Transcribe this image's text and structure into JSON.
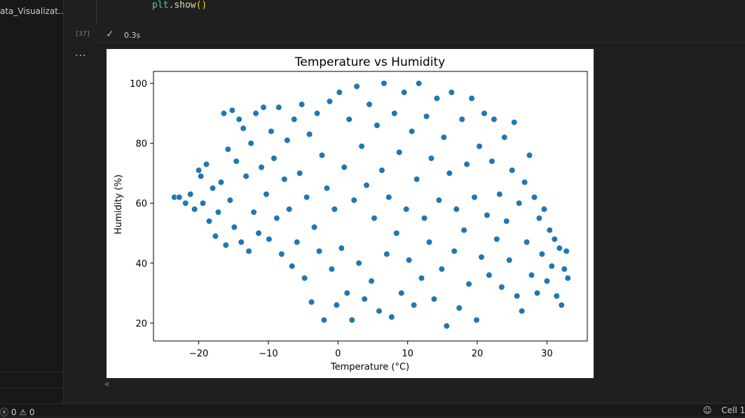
{
  "sidebar": {
    "file_name": "ata_Visualizat..."
  },
  "code_cell": {
    "code": {
      "object": "plt",
      "dot": ".",
      "method": "show",
      "parens": "()"
    },
    "execution_count": "[37]",
    "status_icon": "check-icon",
    "duration": "0.3s"
  },
  "output": {
    "menu_label": "..."
  },
  "statusbar": {
    "errors": "0",
    "warnings": "0",
    "cell_label": "Cell 1",
    "error_icon": "error-circle-icon",
    "warning_icon": "warning-triangle-icon",
    "copilot_icon": "copilot-icon"
  },
  "chart_data": {
    "type": "scatter",
    "title": "Temperature vs Humidity",
    "xlabel": "Temperature (°C)",
    "ylabel": "Humidity (%)",
    "xlim": [
      -26.5,
      35.8
    ],
    "ylim": [
      14,
      104
    ],
    "xticks": [
      -20,
      -10,
      0,
      10,
      20,
      30
    ],
    "yticks": [
      20,
      40,
      60,
      80,
      100
    ],
    "xtick_labels": [
      "−20",
      "−10",
      "0",
      "10",
      "20",
      "30"
    ],
    "ytick_labels": [
      "20",
      "40",
      "60",
      "80",
      "100"
    ],
    "grid": false,
    "marker_color": "#1f77b4",
    "marker_edge_color": "#ffffff",
    "series": [
      {
        "points": [
          [
            -23.5,
            62
          ],
          [
            -22.8,
            62
          ],
          [
            -21.9,
            60
          ],
          [
            -21.2,
            63
          ],
          [
            -20.6,
            58
          ],
          [
            -20.0,
            71
          ],
          [
            -19.7,
            69
          ],
          [
            -19.4,
            60
          ],
          [
            -18.9,
            73
          ],
          [
            -18.5,
            54
          ],
          [
            -18.0,
            65
          ],
          [
            -17.6,
            49
          ],
          [
            -17.2,
            57
          ],
          [
            -16.8,
            67
          ],
          [
            -16.4,
            90
          ],
          [
            -16.1,
            46
          ],
          [
            -15.8,
            78
          ],
          [
            -15.5,
            61
          ],
          [
            -15.2,
            91
          ],
          [
            -14.9,
            52
          ],
          [
            -14.6,
            74
          ],
          [
            -14.2,
            88
          ],
          [
            -13.9,
            47
          ],
          [
            -13.6,
            85
          ],
          [
            -13.2,
            69
          ],
          [
            -12.8,
            44
          ],
          [
            -12.5,
            80
          ],
          [
            -12.1,
            57
          ],
          [
            -11.8,
            90
          ],
          [
            -11.4,
            50
          ],
          [
            -11.0,
            72
          ],
          [
            -10.7,
            92
          ],
          [
            -10.3,
            63
          ],
          [
            -9.9,
            48
          ],
          [
            -9.6,
            84
          ],
          [
            -9.2,
            75
          ],
          [
            -8.8,
            55
          ],
          [
            -8.5,
            92
          ],
          [
            -8.1,
            43
          ],
          [
            -7.7,
            68
          ],
          [
            -7.3,
            81
          ],
          [
            -7.0,
            58
          ],
          [
            -6.6,
            39
          ],
          [
            -6.3,
            88
          ],
          [
            -5.9,
            47
          ],
          [
            -5.5,
            70
          ],
          [
            -5.2,
            93
          ],
          [
            -4.8,
            35
          ],
          [
            -4.5,
            62
          ],
          [
            -4.1,
            83
          ],
          [
            -3.8,
            27
          ],
          [
            -3.4,
            52
          ],
          [
            -3.0,
            90
          ],
          [
            -2.7,
            44
          ],
          [
            -2.3,
            76
          ],
          [
            -2.0,
            21
          ],
          [
            -1.6,
            65
          ],
          [
            -1.2,
            94
          ],
          [
            -0.9,
            38
          ],
          [
            -0.5,
            58
          ],
          [
            -0.2,
            26
          ],
          [
            0.2,
            97
          ],
          [
            0.5,
            45
          ],
          [
            0.9,
            72
          ],
          [
            1.3,
            30
          ],
          [
            1.6,
            88
          ],
          [
            2.0,
            21
          ],
          [
            2.3,
            61
          ],
          [
            2.7,
            99
          ],
          [
            3.0,
            40
          ],
          [
            3.4,
            79
          ],
          [
            3.8,
            28
          ],
          [
            4.1,
            66
          ],
          [
            4.5,
            93
          ],
          [
            4.8,
            34
          ],
          [
            5.2,
            55
          ],
          [
            5.6,
            86
          ],
          [
            5.9,
            24
          ],
          [
            6.3,
            71
          ],
          [
            6.6,
            100
          ],
          [
            7.0,
            43
          ],
          [
            7.3,
            62
          ],
          [
            7.7,
            22
          ],
          [
            8.1,
            90
          ],
          [
            8.4,
            50
          ],
          [
            8.8,
            77
          ],
          [
            9.1,
            30
          ],
          [
            9.5,
            97
          ],
          [
            9.8,
            58
          ],
          [
            10.2,
            41
          ],
          [
            10.6,
            84
          ],
          [
            10.9,
            26
          ],
          [
            11.3,
            68
          ],
          [
            11.6,
            100
          ],
          [
            12.0,
            35
          ],
          [
            12.4,
            55
          ],
          [
            12.7,
            89
          ],
          [
            13.1,
            47
          ],
          [
            13.4,
            75
          ],
          [
            13.8,
            28
          ],
          [
            14.2,
            95
          ],
          [
            14.5,
            61
          ],
          [
            14.9,
            38
          ],
          [
            15.2,
            82
          ],
          [
            15.6,
            19
          ],
          [
            16.0,
            70
          ],
          [
            16.3,
            97
          ],
          [
            16.7,
            44
          ],
          [
            17.0,
            58
          ],
          [
            17.4,
            25
          ],
          [
            17.8,
            88
          ],
          [
            18.1,
            51
          ],
          [
            18.5,
            73
          ],
          [
            18.8,
            33
          ],
          [
            19.2,
            95
          ],
          [
            19.6,
            62
          ],
          [
            19.9,
            21
          ],
          [
            20.3,
            79
          ],
          [
            20.6,
            42
          ],
          [
            21.0,
            90
          ],
          [
            21.4,
            56
          ],
          [
            21.7,
            36
          ],
          [
            22.1,
            74
          ],
          [
            22.4,
            88
          ],
          [
            22.8,
            48
          ],
          [
            23.2,
            63
          ],
          [
            23.5,
            32
          ],
          [
            23.9,
            82
          ],
          [
            24.2,
            54
          ],
          [
            24.6,
            41
          ],
          [
            25.0,
            71
          ],
          [
            25.3,
            87
          ],
          [
            25.7,
            29
          ],
          [
            26.0,
            60
          ],
          [
            26.4,
            24
          ],
          [
            26.8,
            67
          ],
          [
            27.1,
            47
          ],
          [
            27.5,
            76
          ],
          [
            27.8,
            36
          ],
          [
            28.2,
            62
          ],
          [
            28.6,
            30
          ],
          [
            28.9,
            55
          ],
          [
            29.3,
            43
          ],
          [
            29.6,
            58
          ],
          [
            30.0,
            34
          ],
          [
            30.4,
            51
          ],
          [
            30.7,
            39
          ],
          [
            31.1,
            48
          ],
          [
            31.4,
            29
          ],
          [
            31.8,
            45
          ],
          [
            32.1,
            26
          ],
          [
            32.5,
            38
          ],
          [
            32.8,
            44
          ],
          [
            33.0,
            35
          ]
        ]
      }
    ]
  }
}
